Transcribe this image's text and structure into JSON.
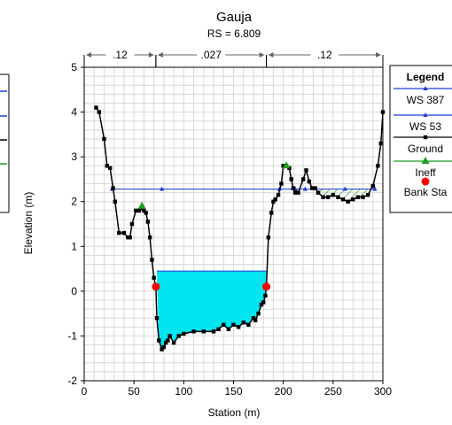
{
  "chart_data": {
    "type": "line",
    "title": "Gauja",
    "subtitle": "RS = 6.809",
    "xlabel": "Station (m)",
    "ylabel": "Elevation (m)",
    "xlim": [
      0,
      300
    ],
    "ylim": [
      -2,
      5
    ],
    "grid": true,
    "xticks": [
      0,
      50,
      100,
      150,
      200,
      250,
      300
    ],
    "yticks": [
      -2,
      -1,
      0,
      1,
      2,
      3,
      4,
      5
    ],
    "mannings_n": [
      {
        "from": 0,
        "to": 72,
        "label": ".12"
      },
      {
        "from": 72,
        "to": 183,
        "label": ".027"
      },
      {
        "from": 183,
        "to": 300,
        "label": ".12"
      }
    ],
    "legend": {
      "title": "Legend",
      "entries": [
        "WS 387",
        "WS 53",
        "Ground",
        "Ineff",
        "Bank Sta"
      ]
    },
    "series": [
      {
        "name": "WS 387",
        "color": "#1f3fd6",
        "marker": "triangle",
        "x": [
          28,
          78,
          196,
          212,
          222,
          262,
          292
        ],
        "y": [
          2.28,
          2.28,
          2.28,
          2.28,
          2.28,
          2.28,
          2.28
        ]
      },
      {
        "name": "WS 53",
        "color": "#1f3fd6",
        "fill": "#00e5f0",
        "x": [
          73,
          183
        ],
        "y": [
          0.45,
          0.45
        ]
      },
      {
        "name": "Ground",
        "color": "#000000",
        "marker": "square",
        "x": [
          12,
          15,
          20,
          23,
          26,
          29,
          31,
          35,
          40,
          44,
          46,
          48,
          52,
          55,
          58,
          60,
          62,
          64,
          66,
          68,
          70,
          72,
          73,
          75,
          78,
          80,
          82,
          84,
          86,
          90,
          95,
          100,
          110,
          120,
          130,
          135,
          140,
          145,
          150,
          155,
          160,
          165,
          170,
          172,
          175,
          178,
          180,
          182,
          183,
          185,
          188,
          190,
          192,
          195,
          198,
          200,
          203,
          206,
          208,
          210,
          212,
          215,
          220,
          223,
          226,
          229,
          232,
          235,
          240,
          245,
          250,
          255,
          260,
          265,
          270,
          275,
          280,
          285,
          290,
          295,
          298,
          300
        ],
        "y": [
          4.1,
          4.0,
          3.4,
          2.8,
          2.75,
          2.3,
          2.0,
          1.3,
          1.3,
          1.2,
          1.2,
          1.5,
          1.8,
          1.8,
          1.85,
          1.8,
          1.75,
          1.55,
          1.2,
          0.7,
          0.3,
          0.1,
          -0.6,
          -1.1,
          -1.3,
          -1.25,
          -1.15,
          -1.1,
          -1.0,
          -1.15,
          -1.0,
          -0.95,
          -0.9,
          -0.9,
          -0.9,
          -0.85,
          -0.75,
          -0.85,
          -0.75,
          -0.8,
          -0.7,
          -0.75,
          -0.6,
          -0.65,
          -0.5,
          -0.3,
          -0.25,
          -0.1,
          0.1,
          1.2,
          1.75,
          2.0,
          2.05,
          2.15,
          2.4,
          2.8,
          2.8,
          2.75,
          2.5,
          2.3,
          2.2,
          2.2,
          2.5,
          2.7,
          2.45,
          2.3,
          2.3,
          2.2,
          2.1,
          2.1,
          2.15,
          2.1,
          2.05,
          2.0,
          2.05,
          2.1,
          2.1,
          2.15,
          2.35,
          2.8,
          3.3,
          4.0
        ]
      },
      {
        "name": "Ineff",
        "color": "#1f9e1f",
        "marker": "triangle-filled",
        "x": [
          58,
          203
        ],
        "y": [
          1.9,
          2.8
        ]
      },
      {
        "name": "Bank Sta",
        "color": "#ff0000",
        "marker": "circle",
        "x": [
          72,
          183
        ],
        "y": [
          0.1,
          0.1
        ]
      }
    ],
    "ineffective_hatch": {
      "from": 232,
      "to": 292,
      "top": 2.28
    }
  },
  "left_panel": {
    "colors": [
      "#1f3fd6",
      "#1f3fd6",
      "#000000",
      "#1f9e1f"
    ]
  }
}
